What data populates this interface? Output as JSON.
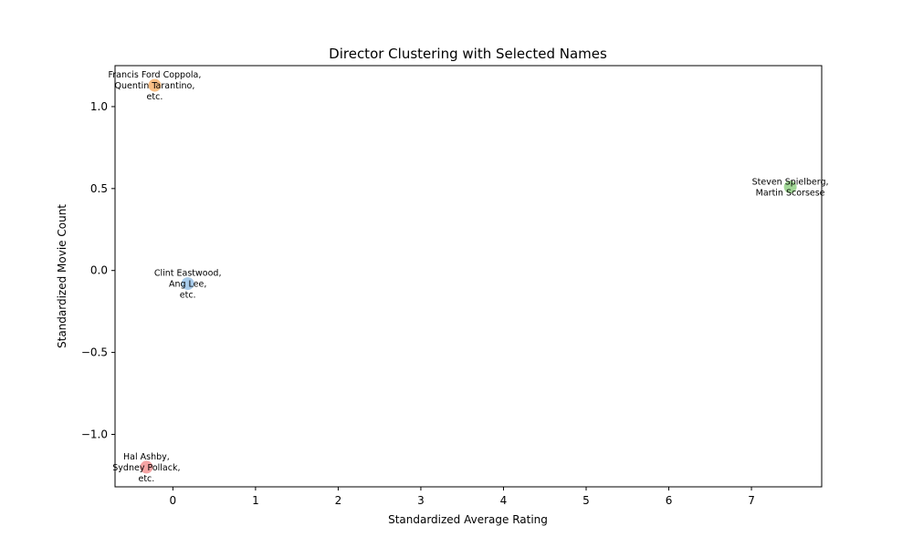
{
  "chart_data": {
    "type": "scatter",
    "title": "Director Clustering with Selected Names",
    "xlabel": "Standardized Average Rating",
    "ylabel": "Standardized Movie Count",
    "xlim": [
      -0.7,
      7.85
    ],
    "ylim": [
      -1.32,
      1.25
    ],
    "xticks": [
      0,
      1,
      2,
      3,
      4,
      5,
      6,
      7
    ],
    "yticks": [
      -1.0,
      -0.5,
      0.0,
      0.5,
      1.0
    ],
    "ytick_labels": [
      "−1.0",
      "−0.5",
      "0.0",
      "0.5",
      "1.0"
    ],
    "grid": false,
    "legend": "none",
    "points": [
      {
        "x": 0.18,
        "y": -0.08,
        "color": "#9ec5e8",
        "label_lines": [
          "Clint Eastwood,",
          "Ang Lee,",
          "etc."
        ]
      },
      {
        "x": -0.22,
        "y": 1.13,
        "color": "#f8b878",
        "label_lines": [
          "Francis Ford Coppola,",
          "Quentin Tarantino,",
          "etc."
        ]
      },
      {
        "x": 7.47,
        "y": 0.51,
        "color": "#98d48c",
        "label_lines": [
          "Steven Spielberg,",
          "Martin Scorsese"
        ]
      },
      {
        "x": -0.32,
        "y": -1.2,
        "color": "#f49a9a",
        "label_lines": [
          "Hal Ashby,",
          "Sydney Pollack,",
          "etc."
        ]
      }
    ]
  }
}
